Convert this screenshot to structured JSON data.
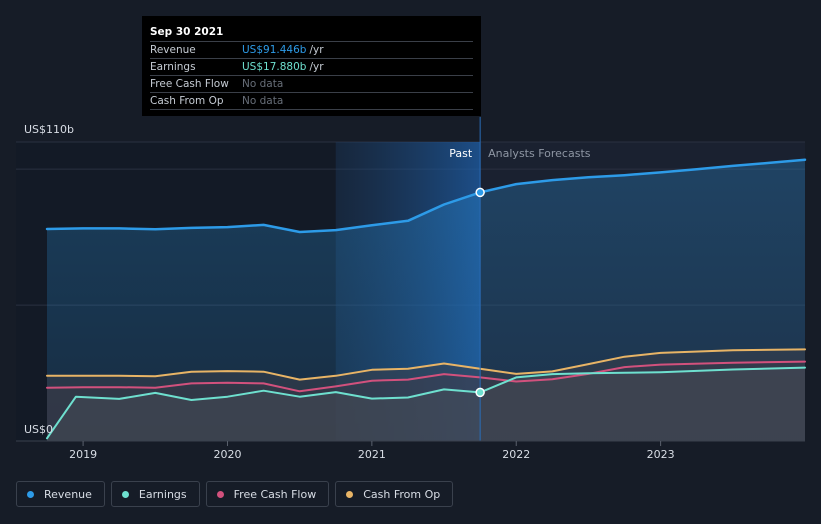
{
  "tooltip": {
    "date": "Sep 30 2021",
    "rows": [
      {
        "label": "Revenue",
        "value": "US$91.446b",
        "unit": "/yr"
      },
      {
        "label": "Earnings",
        "value": "US$17.880b",
        "unit": "/yr"
      },
      {
        "label": "Free Cash Flow",
        "value": "No data"
      },
      {
        "label": "Cash From Op",
        "value": "No data"
      }
    ]
  },
  "legend": [
    {
      "label": "Revenue",
      "color": "#2d9be8"
    },
    {
      "label": "Earnings",
      "color": "#6ee0cf"
    },
    {
      "label": "Free Cash Flow",
      "color": "#d2517d"
    },
    {
      "label": "Cash From Op",
      "color": "#e8b466"
    }
  ],
  "chart_data": {
    "type": "area",
    "ylabel_top": "US$110b",
    "ylabel_bottom": "US$0",
    "ylim": [
      0,
      110
    ],
    "xlim": [
      2018.75,
      2024.0
    ],
    "x_ticks": [
      2019,
      2020,
      2021,
      2022,
      2023
    ],
    "x_tick_labels": [
      "2019",
      "2020",
      "2021",
      "2022",
      "2023"
    ],
    "past_label": "Past",
    "forecast_label": "Analysts Forecasts",
    "divider_x": 2021.75,
    "highlight_start_x": 2020.75,
    "grid": true,
    "series": [
      {
        "name": "Revenue",
        "color": "#2d9be8",
        "values": [
          [
            2018.75,
            78.0
          ],
          [
            2019.0,
            78.2
          ],
          [
            2019.25,
            78.2
          ],
          [
            2019.5,
            77.9
          ],
          [
            2019.75,
            78.4
          ],
          [
            2020.0,
            78.7
          ],
          [
            2020.25,
            79.5
          ],
          [
            2020.5,
            76.9
          ],
          [
            2020.75,
            77.6
          ],
          [
            2021.0,
            79.4
          ],
          [
            2021.25,
            81.0
          ],
          [
            2021.5,
            87.0
          ],
          [
            2021.75,
            91.446
          ],
          [
            2022.0,
            94.5
          ],
          [
            2022.25,
            96.0
          ],
          [
            2022.5,
            97.0
          ],
          [
            2022.75,
            97.8
          ],
          [
            2023.0,
            98.8
          ],
          [
            2023.25,
            100.0
          ],
          [
            2023.5,
            101.2
          ],
          [
            2023.75,
            102.3
          ],
          [
            2024.0,
            103.5
          ]
        ]
      },
      {
        "name": "Earnings",
        "color": "#6ee0cf",
        "values": [
          [
            2018.75,
            1.0
          ],
          [
            2018.95,
            16.3
          ],
          [
            2019.25,
            15.5
          ],
          [
            2019.5,
            17.7
          ],
          [
            2019.75,
            15.1
          ],
          [
            2020.0,
            16.3
          ],
          [
            2020.25,
            18.5
          ],
          [
            2020.5,
            16.3
          ],
          [
            2020.75,
            18.0
          ],
          [
            2021.0,
            15.6
          ],
          [
            2021.25,
            16.0
          ],
          [
            2021.5,
            19.0
          ],
          [
            2021.75,
            17.88
          ],
          [
            2022.0,
            23.4
          ],
          [
            2022.25,
            24.6
          ],
          [
            2022.5,
            24.9
          ],
          [
            2022.75,
            25.1
          ],
          [
            2023.0,
            25.3
          ],
          [
            2023.5,
            26.3
          ],
          [
            2024.0,
            27.0
          ]
        ]
      },
      {
        "name": "Free Cash Flow",
        "color": "#d2517d",
        "values": [
          [
            2018.75,
            19.6
          ],
          [
            2019.0,
            19.8
          ],
          [
            2019.25,
            19.8
          ],
          [
            2019.5,
            19.6
          ],
          [
            2019.75,
            21.2
          ],
          [
            2020.0,
            21.4
          ],
          [
            2020.25,
            21.2
          ],
          [
            2020.5,
            18.3
          ],
          [
            2020.75,
            20.1
          ],
          [
            2021.0,
            22.2
          ],
          [
            2021.25,
            22.6
          ],
          [
            2021.5,
            24.6
          ],
          [
            2021.75,
            23.4
          ],
          [
            2022.0,
            21.9
          ],
          [
            2022.25,
            22.7
          ],
          [
            2022.5,
            24.7
          ],
          [
            2022.75,
            27.2
          ],
          [
            2023.0,
            28.1
          ],
          [
            2023.5,
            28.8
          ],
          [
            2024.0,
            29.2
          ]
        ]
      },
      {
        "name": "Cash From Op",
        "color": "#e8b466",
        "values": [
          [
            2018.75,
            24.0
          ],
          [
            2019.0,
            24.0
          ],
          [
            2019.25,
            24.0
          ],
          [
            2019.5,
            23.8
          ],
          [
            2019.75,
            25.5
          ],
          [
            2020.0,
            25.7
          ],
          [
            2020.25,
            25.5
          ],
          [
            2020.5,
            22.6
          ],
          [
            2020.75,
            24.0
          ],
          [
            2021.0,
            26.2
          ],
          [
            2021.25,
            26.6
          ],
          [
            2021.5,
            28.5
          ],
          [
            2021.75,
            26.6
          ],
          [
            2022.0,
            24.7
          ],
          [
            2022.25,
            25.6
          ],
          [
            2022.5,
            28.3
          ],
          [
            2022.75,
            31.0
          ],
          [
            2023.0,
            32.4
          ],
          [
            2023.5,
            33.4
          ],
          [
            2024.0,
            33.7
          ]
        ]
      }
    ]
  }
}
